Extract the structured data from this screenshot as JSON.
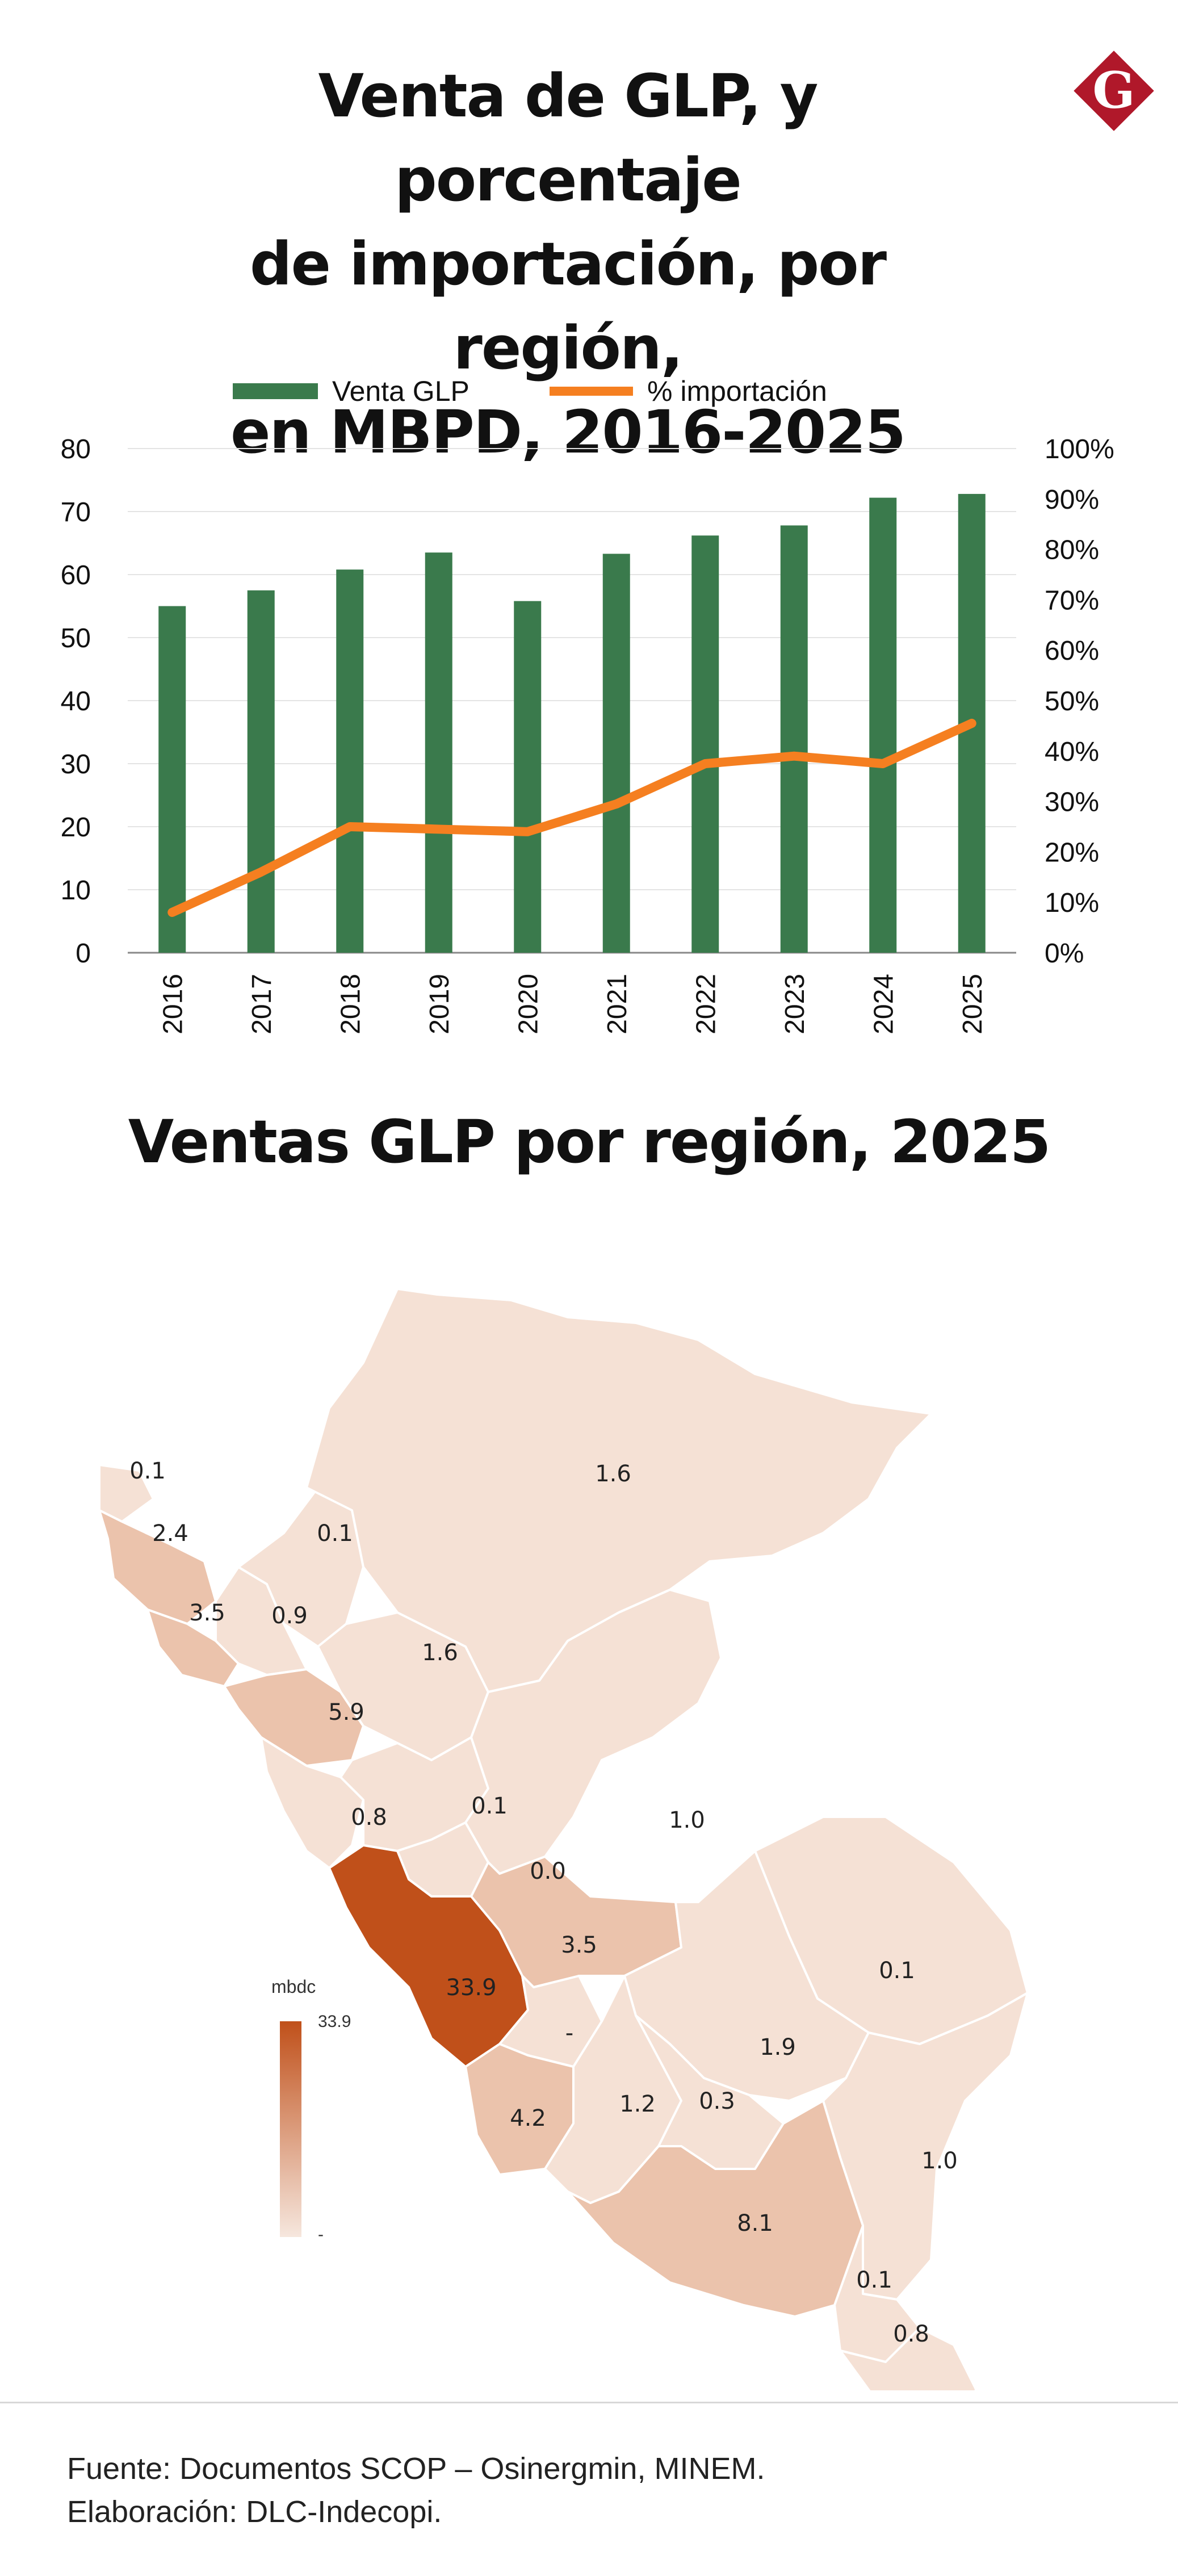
{
  "header": {
    "title_lines": [
      "Venta de GLP, y porcentaje",
      "de importación, por región,",
      "en MBPD, 2016-2025"
    ],
    "logo_letter": "G",
    "logo_color": "#b0182a"
  },
  "chart_data": {
    "type": "bar",
    "title": "Venta de GLP, y porcentaje de importación, por región, en MBPD, 2016-2025",
    "categories": [
      "2016",
      "2017",
      "2018",
      "2019",
      "2020",
      "2021",
      "2022",
      "2023",
      "2024",
      "2025"
    ],
    "series": [
      {
        "name": "Venta GLP",
        "type": "bar",
        "axis": "left",
        "color": "#3a7a4c",
        "values": [
          55.0,
          57.5,
          60.8,
          63.5,
          55.8,
          63.3,
          66.2,
          67.8,
          72.2,
          72.8
        ]
      },
      {
        "name": "% importación",
        "type": "line",
        "axis": "right",
        "color": "#f57f20",
        "values": [
          8,
          16,
          25,
          24.5,
          24,
          29.5,
          37.5,
          39,
          37.5,
          45.5
        ]
      }
    ],
    "y_left": {
      "min": 0,
      "max": 80,
      "ticks": [
        "0",
        "10",
        "20",
        "30",
        "40",
        "50",
        "60",
        "70",
        "80"
      ]
    },
    "y_right": {
      "min": 0,
      "max": 100,
      "ticks": [
        "0%",
        "10%",
        "20%",
        "30%",
        "40%",
        "50%",
        "60%",
        "70%",
        "80%",
        "90%",
        "100%"
      ]
    },
    "xlabel": "",
    "ylabel": "",
    "grid": true,
    "legend": "top"
  },
  "map": {
    "title": "Ventas GLP por región, 2025",
    "legend": {
      "title": "mbdc",
      "max_label": "33.9",
      "min_label": "-",
      "color_low": "#f6e7de",
      "color_high": "#c0501a"
    },
    "region_values": [
      "0.1",
      "2.4",
      "3.5",
      "0.1",
      "0.9",
      "1.6",
      "5.9",
      "0.8",
      "1.6",
      "0.1",
      "0.0",
      "1.0",
      "33.9",
      "3.5",
      "-",
      "0.1",
      "1.9",
      "4.2",
      "1.2",
      "0.3",
      "1.0",
      "8.1",
      "0.1",
      "0.8"
    ]
  },
  "footer": {
    "source": "Fuente: Documentos SCOP – Osinergmin, MINEM.",
    "credit": "Elaboración: DLC-Indecopi."
  }
}
